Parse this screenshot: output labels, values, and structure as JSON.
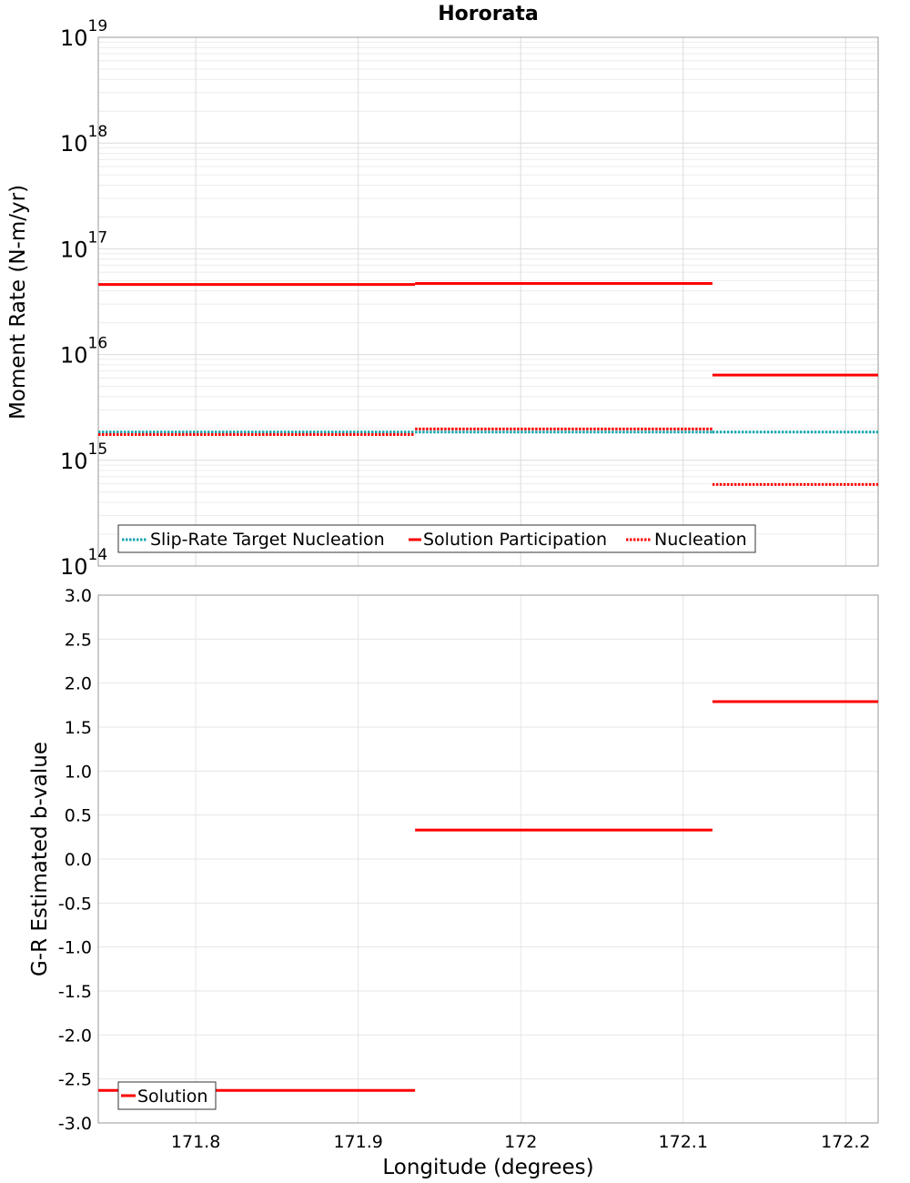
{
  "chart_data": [
    {
      "type": "line",
      "title": "Hororata",
      "ylabel": "Moment Rate (N-m/yr)",
      "xlabel": "",
      "yscale": "log",
      "ylim": [
        100000000000000.0,
        1e+19
      ],
      "xlim": [
        171.74,
        172.22
      ],
      "y_ticks": [
        {
          "base": "10",
          "exp": "19",
          "value": 1e+19
        },
        {
          "base": "10",
          "exp": "18",
          "value": 1e+18
        },
        {
          "base": "10",
          "exp": "17",
          "value": 1e+17
        },
        {
          "base": "10",
          "exp": "16",
          "value": 1e+16
        },
        {
          "base": "10",
          "exp": "15",
          "value": 1000000000000000.0
        },
        {
          "base": "10",
          "exp": "14",
          "value": 100000000000000.0
        }
      ],
      "grid": true,
      "legend_position": "bottom-left",
      "series": [
        {
          "name": "Slip-Rate Target Nucleation",
          "color": "#1aa6b0",
          "dash": "dotted",
          "segments": [
            {
              "x": [
                171.74,
                171.935
              ],
              "y": 1850000000000000.0
            },
            {
              "x": [
                171.935,
                172.118
              ],
              "y": 1850000000000000.0
            },
            {
              "x": [
                172.118,
                172.22
              ],
              "y": 1850000000000000.0
            }
          ]
        },
        {
          "name": "Solution Participation",
          "color": "#ff0000",
          "dash": "solid",
          "segments": [
            {
              "x": [
                171.74,
                171.935
              ],
              "y": 4.6e+16
            },
            {
              "x": [
                171.935,
                172.118
              ],
              "y": 4.7e+16
            },
            {
              "x": [
                172.118,
                172.22
              ],
              "y": 6400000000000000.0
            }
          ]
        },
        {
          "name": "Nucleation",
          "color": "#ff0000",
          "dash": "dotted",
          "segments": [
            {
              "x": [
                171.74,
                171.935
              ],
              "y": 1750000000000000.0
            },
            {
              "x": [
                171.935,
                172.118
              ],
              "y": 1980000000000000.0
            },
            {
              "x": [
                172.118,
                172.22
              ],
              "y": 590000000000000.0
            }
          ]
        }
      ]
    },
    {
      "type": "line",
      "title": "",
      "ylabel": "G-R Estimated b-value",
      "xlabel": "Longitude (degrees)",
      "ylim": [
        -3.0,
        3.0
      ],
      "xlim": [
        171.74,
        172.22
      ],
      "y_ticks": [
        "3.0",
        "2.5",
        "2.0",
        "1.5",
        "1.0",
        "0.5",
        "0.0",
        "-0.5",
        "-1.0",
        "-1.5",
        "-2.0",
        "-2.5",
        "-3.0"
      ],
      "y_tick_values": [
        3.0,
        2.5,
        2.0,
        1.5,
        1.0,
        0.5,
        0.0,
        -0.5,
        -1.0,
        -1.5,
        -2.0,
        -2.5,
        -3.0
      ],
      "x_ticks": [
        "171.8",
        "171.9",
        "172",
        "172.1",
        "172.2"
      ],
      "x_tick_values": [
        171.8,
        171.9,
        172.0,
        172.1,
        172.2
      ],
      "grid": true,
      "legend_position": "bottom-left",
      "series": [
        {
          "name": "Solution",
          "color": "#ff0000",
          "dash": "solid",
          "segments": [
            {
              "x": [
                171.74,
                171.935
              ],
              "y": -2.63
            },
            {
              "x": [
                171.935,
                172.118
              ],
              "y": 0.33
            },
            {
              "x": [
                172.118,
                172.22
              ],
              "y": 1.79
            }
          ]
        }
      ]
    }
  ]
}
